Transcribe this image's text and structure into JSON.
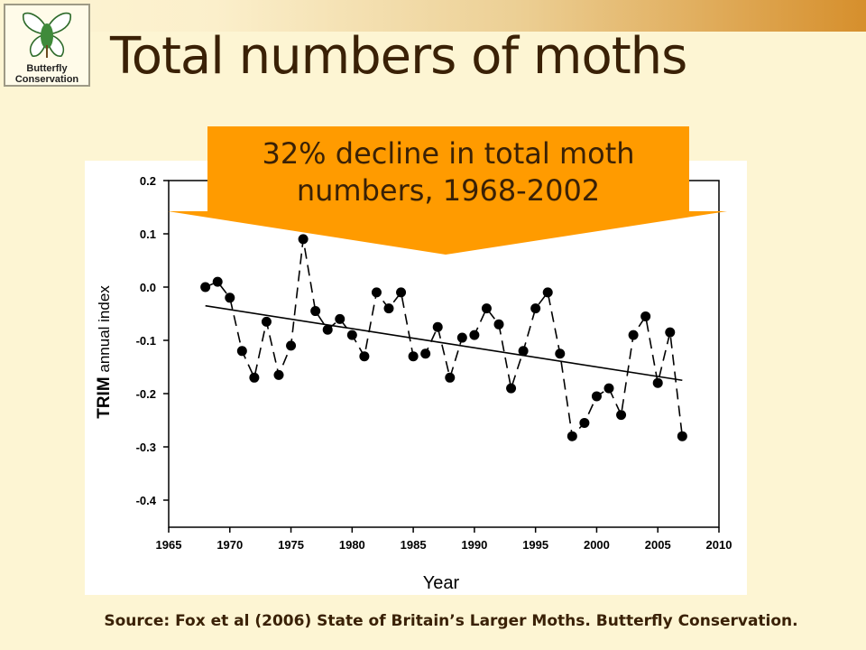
{
  "slide": {
    "title": "Total numbers of moths",
    "logo_line1": "Butterfly",
    "logo_line2": "Conservation",
    "callout_line1": "32% decline in total moth",
    "callout_line2": "numbers, 1968-2002",
    "source": "Source: Fox et al (2006) State of Britain’s Larger Moths. Butterfly Conservation."
  },
  "colors": {
    "background": "#fdf5d3",
    "title": "#3a2106",
    "callout": "#ff9b00",
    "points": "#000000"
  },
  "chart_data": {
    "type": "line",
    "xlabel": "Year",
    "ylabel_parts": [
      "TRIM",
      " annual index"
    ],
    "xlim": [
      1965,
      2010
    ],
    "ylim": [
      -0.45,
      0.2
    ],
    "x_ticks": [
      1965,
      1970,
      1975,
      1980,
      1985,
      1990,
      1995,
      2000,
      2005,
      2010
    ],
    "y_ticks": [
      0.2,
      0.1,
      0.0,
      -0.1,
      -0.2,
      -0.3,
      -0.4
    ],
    "y_tick_labels": [
      "0.2",
      "0.1",
      "0.0",
      "-0.1",
      "-0.2",
      "-0.3",
      "-0.4"
    ],
    "grid": false,
    "series": [
      {
        "style": "dashed line with filled circle markers",
        "x": [
          1968,
          1969,
          1970,
          1971,
          1972,
          1973,
          1974,
          1975,
          1976,
          1977,
          1978,
          1979,
          1980,
          1981,
          1982,
          1983,
          1984,
          1985,
          1986,
          1987,
          1988,
          1989,
          1990,
          1991,
          1992,
          1993,
          1994,
          1995,
          1996,
          1997,
          1998,
          1999,
          2000,
          2001,
          2002,
          2003,
          2004,
          2005,
          2006,
          2007
        ],
        "y": [
          0.0,
          0.01,
          -0.02,
          -0.12,
          -0.17,
          -0.065,
          -0.165,
          -0.11,
          0.09,
          -0.045,
          -0.08,
          -0.06,
          -0.09,
          -0.13,
          -0.01,
          -0.04,
          -0.01,
          -0.13,
          -0.125,
          -0.075,
          -0.17,
          -0.095,
          -0.09,
          -0.04,
          -0.07,
          -0.19,
          -0.12,
          -0.04,
          -0.01,
          -0.125,
          -0.28,
          -0.255,
          -0.205,
          -0.19,
          -0.24,
          -0.09,
          -0.055,
          -0.18,
          -0.085,
          -0.28
        ]
      },
      {
        "style": "solid trend line",
        "x": [
          1968,
          2007
        ],
        "y": [
          -0.035,
          -0.175
        ]
      }
    ]
  }
}
